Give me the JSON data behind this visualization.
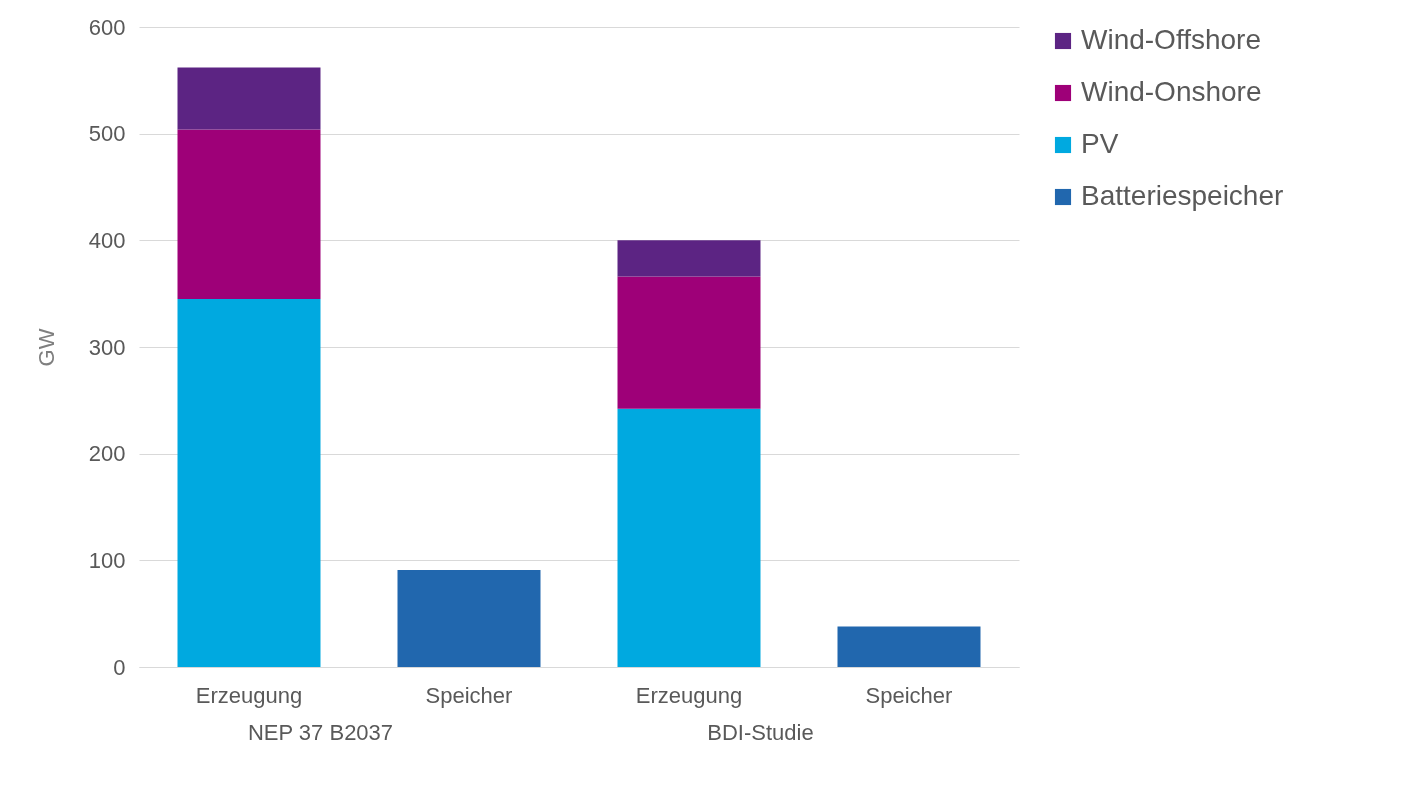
{
  "chart_data": {
    "type": "bar",
    "ylabel": "GW",
    "categories": [
      "Erzeugung",
      "Speicher",
      "Erzeugung",
      "Speicher"
    ],
    "series": [
      {
        "name": "Batteriespeicher",
        "color": "#2167ae",
        "values": [
          null,
          91,
          null,
          38
        ]
      },
      {
        "name": "PV",
        "color": "#00a9e0",
        "values": [
          345,
          null,
          242,
          null
        ]
      },
      {
        "name": "Wind-Onshore",
        "color": "#9e0078",
        "values": [
          159,
          null,
          124,
          null
        ]
      },
      {
        "name": "Wind-Offshore",
        "color": "#5c2483",
        "values": [
          58,
          null,
          34,
          null
        ]
      }
    ],
    "stacked": true,
    "ylim": [
      0,
      600
    ],
    "yticks": [
      0,
      100,
      200,
      300,
      400,
      500,
      600
    ],
    "grid": "y",
    "legend": "right",
    "annotations": [
      "NEP 37 B2037",
      "BDI-Studie"
    ]
  }
}
